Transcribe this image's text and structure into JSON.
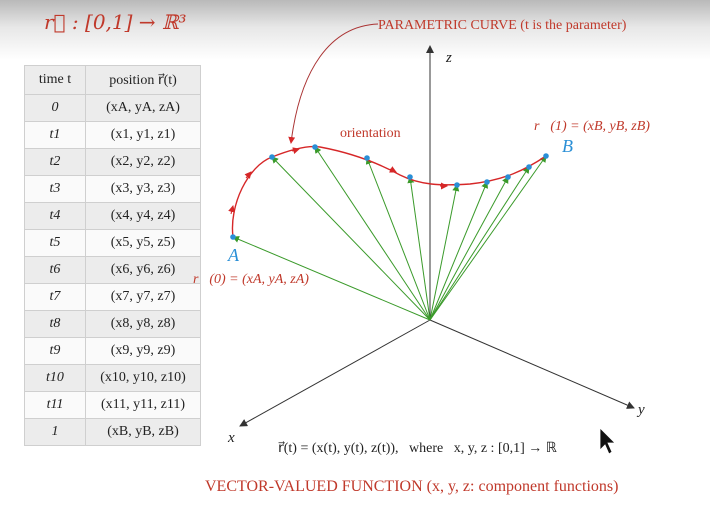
{
  "header": {
    "domain_title": "r⃗ : [0,1] → ℝ³"
  },
  "table": {
    "headers": [
      "time t",
      "position r⃗(t)"
    ],
    "rows": [
      {
        "t": "0",
        "pos": "(xA, yA, zA)"
      },
      {
        "t": "t1",
        "pos": "(x1, y1, z1)"
      },
      {
        "t": "t2",
        "pos": "(x2, y2, z2)"
      },
      {
        "t": "t3",
        "pos": "(x3, y3, z3)"
      },
      {
        "t": "t4",
        "pos": "(x4, y4, z4)"
      },
      {
        "t": "t5",
        "pos": "(x5, y5, z5)"
      },
      {
        "t": "t6",
        "pos": "(x6, y6, z6)"
      },
      {
        "t": "t7",
        "pos": "(x7, y7, z7)"
      },
      {
        "t": "t8",
        "pos": "(x8, y8, z8)"
      },
      {
        "t": "t9",
        "pos": "(x9, y9, z9)"
      },
      {
        "t": "t10",
        "pos": "(x10, y10, z10)"
      },
      {
        "t": "t11",
        "pos": "(x11, y11, z11)"
      },
      {
        "t": "1",
        "pos": "(xB, yB, zB)"
      }
    ]
  },
  "diagram": {
    "curve_label": "PARAMETRIC CURVE (t is the parameter)",
    "orientation_label": "orientation",
    "point_a_label": "A",
    "point_b_label": "B",
    "r0_label": "r⃗(0) = (xA, yA, zA)",
    "r1_label": "r⃗(1) = (xB, yB, zB)",
    "axis_x": "x",
    "axis_y": "y",
    "axis_z": "z",
    "formula": "r⃗(t) = (x(t), y(t), z(t)),   where   x, y, z : [0,1] → ℝ",
    "bottom_caption": "VECTOR-VALUED FUNCTION (x, y, z: component functions)"
  },
  "colors": {
    "curve": "#d62728",
    "vectors": "#3a9a2a",
    "points": "#2a8fd6",
    "labels_red": "#c0392b",
    "labels_blue": "#2a8fd6"
  }
}
